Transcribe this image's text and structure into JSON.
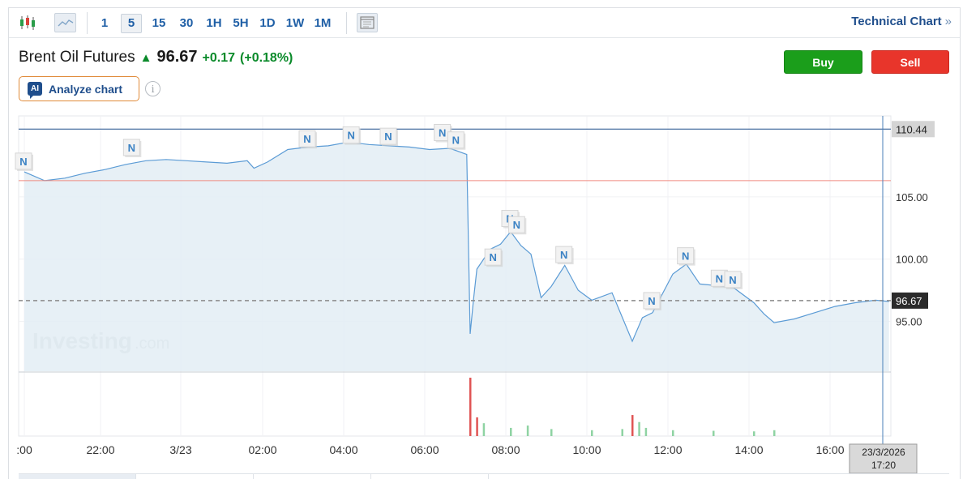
{
  "toolbar": {
    "chart_type_icons": [
      "candlestick-icon",
      "area-chart-icon"
    ],
    "intervals": [
      "1",
      "5",
      "15",
      "30",
      "1H",
      "5H",
      "1D",
      "1W",
      "1M"
    ],
    "active_interval": "5",
    "layout_icon": "layout-icon",
    "technical_link": "Technical Chart",
    "technical_link_icon": "double-chevron-right-icon"
  },
  "instrument": {
    "name": "Brent Oil Futures",
    "direction_icon": "arrow-up-icon",
    "price": "96.67",
    "change": "+0.17",
    "change_pct": "(+0.18%)",
    "up_color": "#0a8a2a"
  },
  "actions": {
    "buy_label": "Buy",
    "sell_label": "Sell",
    "buy_color": "#1b9e1b",
    "sell_color": "#e8352b"
  },
  "analyze": {
    "badge": "AI",
    "label": "Analyze chart",
    "info_icon": "info-icon"
  },
  "chart_data": {
    "type": "area",
    "x_ticks": [
      ":00",
      "22:00",
      "3/23",
      "02:00",
      "04:00",
      "06:00",
      "08:00",
      "10:00",
      "12:00",
      "14:00",
      "16:00"
    ],
    "y_ticks": [
      95.0,
      100.0,
      105.0
    ],
    "ylim": [
      91.0,
      111.5
    ],
    "ref_lines": {
      "high": 110.44,
      "previous_close": 106.3,
      "current": 96.67
    },
    "price_labels": {
      "high": "110.44",
      "current": "96.67"
    },
    "crosshair_label": [
      "23/3/2026",
      "17:20"
    ],
    "watermark": {
      "main": "Investing",
      "suffix": ".com"
    },
    "news_marker": "N",
    "news_markers": [
      {
        "x": "20:00",
        "y": 107.8
      },
      {
        "x": "22:40",
        "y": 108.9
      },
      {
        "x": "03:00",
        "y": 109.6
      },
      {
        "x": "04:05",
        "y": 109.9
      },
      {
        "x": "05:00",
        "y": 109.8
      },
      {
        "x": "06:20",
        "y": 110.1
      },
      {
        "x": "06:40",
        "y": 109.5
      },
      {
        "x": "07:35",
        "y": 100.1
      },
      {
        "x": "08:00",
        "y": 103.2
      },
      {
        "x": "08:10",
        "y": 102.7
      },
      {
        "x": "09:20",
        "y": 100.3
      },
      {
        "x": "11:30",
        "y": 96.6
      },
      {
        "x": "12:20",
        "y": 100.2
      },
      {
        "x": "13:10",
        "y": 98.4
      },
      {
        "x": "13:30",
        "y": 98.3
      }
    ],
    "series": [
      {
        "x": [
          "20:00",
          "20:30",
          "21:00",
          "21:30",
          "22:00",
          "22:30",
          "23:00",
          "23:30",
          "00:00",
          "00:30",
          "01:00",
          "01:30",
          "01:40",
          "02:00",
          "02:30",
          "03:00",
          "03:30",
          "04:00",
          "04:30",
          "05:00",
          "05:30",
          "06:00",
          "06:30",
          "06:55",
          "07:00",
          "07:05",
          "07:10",
          "07:30",
          "07:45",
          "08:00",
          "08:15",
          "08:30",
          "08:45",
          "09:00",
          "09:20",
          "09:40",
          "10:00",
          "10:30",
          "11:00",
          "11:15",
          "11:30",
          "12:00",
          "12:20",
          "12:40",
          "13:00",
          "13:30",
          "14:00",
          "14:15",
          "14:30",
          "15:00",
          "15:30",
          "16:00",
          "16:30",
          "17:00",
          "17:20"
        ],
        "y": [
          107.0,
          106.3,
          106.5,
          106.9,
          107.2,
          107.6,
          107.9,
          108.0,
          107.9,
          107.8,
          107.7,
          107.9,
          107.3,
          107.8,
          108.8,
          109.0,
          109.1,
          109.4,
          109.2,
          109.1,
          109.0,
          108.8,
          108.9,
          108.4,
          94.0,
          96.8,
          99.2,
          100.8,
          101.2,
          102.2,
          101.1,
          100.4,
          96.9,
          97.8,
          99.5,
          97.5,
          96.7,
          97.3,
          93.4,
          95.3,
          95.7,
          98.8,
          99.6,
          98.0,
          97.9,
          97.7,
          96.5,
          95.6,
          94.9,
          95.2,
          95.7,
          96.2,
          96.5,
          96.7,
          96.6
        ]
      }
    ],
    "volume": [
      {
        "x": "07:00",
        "v": 100
      },
      {
        "x": "07:10",
        "v": 32
      },
      {
        "x": "07:20",
        "v": 22
      },
      {
        "x": "08:00",
        "v": 14
      },
      {
        "x": "08:25",
        "v": 18
      },
      {
        "x": "09:00",
        "v": 12
      },
      {
        "x": "10:00",
        "v": 10
      },
      {
        "x": "10:45",
        "v": 12
      },
      {
        "x": "11:00",
        "v": 36
      },
      {
        "x": "11:10",
        "v": 24
      },
      {
        "x": "11:20",
        "v": 14
      },
      {
        "x": "12:00",
        "v": 10
      },
      {
        "x": "13:00",
        "v": 9
      },
      {
        "x": "14:00",
        "v": 8
      },
      {
        "x": "14:30",
        "v": 10
      }
    ],
    "colors": {
      "line": "#5b9bd5",
      "area": "#e3edf5",
      "high_line": "#1f4e8c",
      "prev_close_line": "#f08b80",
      "vol_up": "#8fd3a3",
      "vol_down": "#e05454"
    },
    "grid": true
  }
}
